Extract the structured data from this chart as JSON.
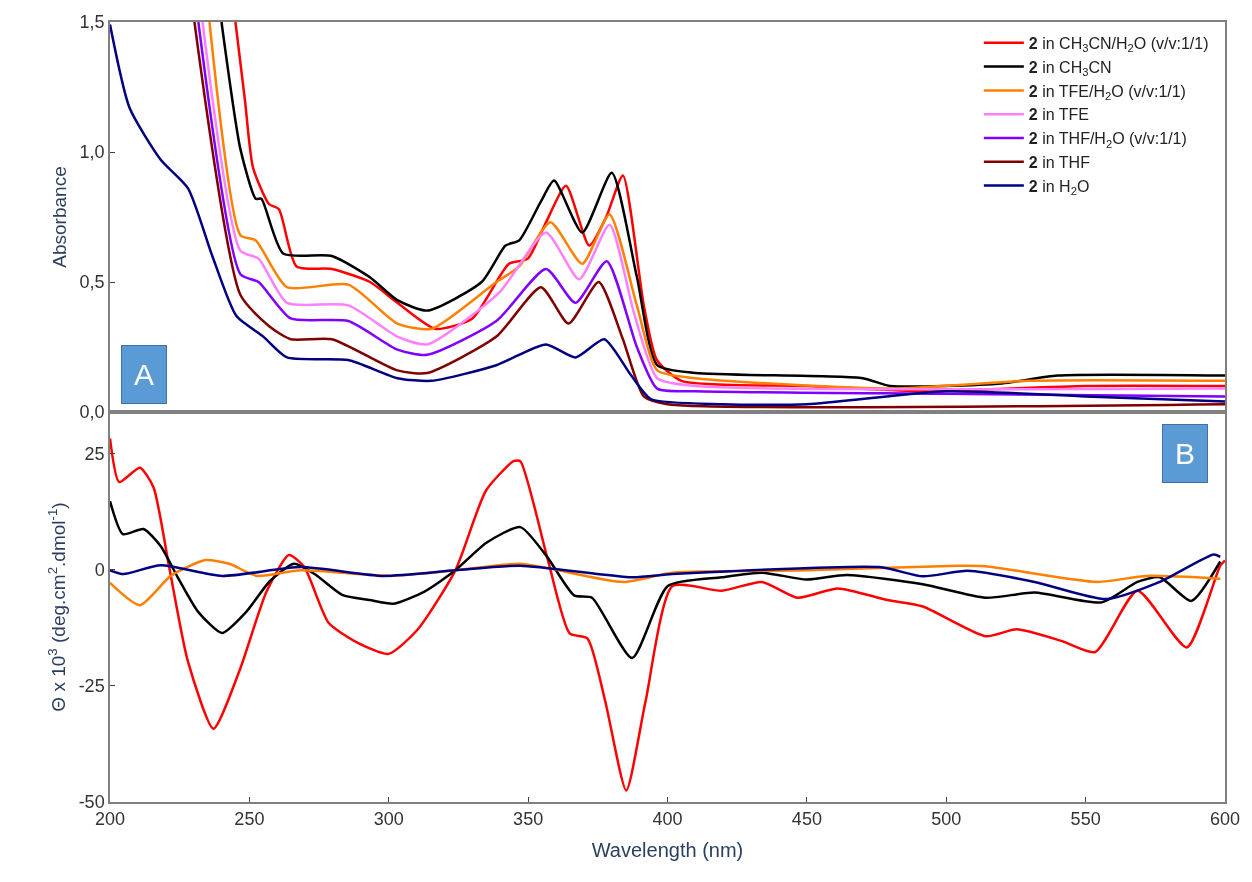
{
  "chart_data": [
    {
      "type": "line",
      "ylabel": "Absorbance",
      "xlim": [
        200,
        600
      ],
      "ylim": [
        0,
        1.5
      ],
      "yticks": [
        {
          "value": 0,
          "label": "0,0"
        },
        {
          "value": 0.5,
          "label": "0,5"
        },
        {
          "value": 1.0,
          "label": "1,0"
        },
        {
          "value": 1.5,
          "label": "1,5"
        }
      ],
      "tick_labels": "y",
      "legend": "top right",
      "annotations": [
        "A"
      ],
      "series": [
        {
          "name": "2 in CH$_{3}$CN/H$_{2}$O (v/v:1/1)",
          "color": "#ff0000",
          "x": [
            245,
            248.4,
            251.3,
            257,
            260.6,
            266.9,
            279.6,
            293.3,
            303.1,
            316.7,
            330,
            343.1,
            349.9,
            356,
            363.6,
            371.9,
            378,
            384,
            391.5,
            396.2,
            405,
            450,
            490,
            550,
            600
          ],
          "values": [
            1.5,
            1.2,
            0.94,
            0.8,
            0.78,
            0.56,
            0.55,
            0.5,
            0.42,
            0.32,
            0.36,
            0.57,
            0.59,
            0.72,
            0.87,
            0.64,
            0.75,
            0.91,
            0.41,
            0.2,
            0.12,
            0.1,
            0.08,
            0.1,
            0.1
          ]
        },
        {
          "name": "2 in CH$_{3}$CN",
          "color": "#000000",
          "x": [
            240,
            246.8,
            252.3,
            254.3,
            262.1,
            279.6,
            293,
            303.1,
            313.8,
            333.3,
            341.9,
            346.8,
            354.6,
            359.3,
            369.4,
            380,
            389,
            396.3,
            410,
            470,
            480,
            520,
            540,
            600
          ],
          "values": [
            1.5,
            1.01,
            0.82,
            0.82,
            0.61,
            0.6,
            0.52,
            0.43,
            0.39,
            0.5,
            0.64,
            0.66,
            0.81,
            0.89,
            0.69,
            0.92,
            0.52,
            0.18,
            0.15,
            0.13,
            0.1,
            0.11,
            0.14,
            0.14
          ]
        },
        {
          "name": "2 in TFE/H$_{2}$O (v/v:1/1)",
          "color": "#ff7f00",
          "x": [
            235.7,
            246.8,
            252.3,
            263.5,
            285.5,
            303.1,
            315.4,
            338.6,
            346.8,
            358,
            369.4,
            379.2,
            389,
            396.3,
            410,
            480,
            530,
            600
          ],
          "values": [
            1.5,
            0.68,
            0.66,
            0.48,
            0.49,
            0.34,
            0.32,
            0.5,
            0.56,
            0.73,
            0.57,
            0.76,
            0.41,
            0.16,
            0.13,
            0.09,
            0.12,
            0.12
          ]
        },
        {
          "name": "2 in TFE",
          "color": "#ff80ff",
          "x": [
            233.2,
            246.8,
            253.3,
            263.5,
            285.5,
            303.1,
            313.8,
            339.7,
            356.4,
            368.3,
            379.2,
            388,
            396.3,
            410,
            600
          ],
          "values": [
            1.5,
            0.62,
            0.59,
            0.42,
            0.41,
            0.29,
            0.26,
            0.46,
            0.69,
            0.51,
            0.72,
            0.38,
            0.13,
            0.1,
            0.09
          ]
        },
        {
          "name": "2 in THF/H$_{2}$O (v/v:1/1)",
          "color": "#8000ff",
          "x": [
            231.7,
            246.8,
            253.3,
            264.8,
            285.5,
            303.1,
            313.8,
            338.6,
            356.4,
            367,
            378.2,
            389,
            396.3,
            410,
            500,
            600
          ],
          "values": [
            1.5,
            0.53,
            0.5,
            0.36,
            0.35,
            0.24,
            0.22,
            0.35,
            0.55,
            0.42,
            0.58,
            0.25,
            0.09,
            0.08,
            0.07,
            0.06
          ]
        },
        {
          "name": "2 in THF",
          "color": "#800000",
          "x": [
            230.3,
            246.8,
            257.1,
            264.8,
            279.6,
            303.1,
            313.8,
            338.6,
            354.6,
            364.5,
            375.3,
            384,
            391.5,
            400,
            600
          ],
          "values": [
            1.5,
            0.45,
            0.33,
            0.28,
            0.28,
            0.16,
            0.15,
            0.29,
            0.48,
            0.34,
            0.5,
            0.28,
            0.06,
            0.03,
            0.03
          ]
        },
        {
          "name": "2 in H$_{2}$O",
          "color": "#000080",
          "x": [
            200,
            207,
            218.2,
            228,
            236.7,
            245.3,
            255,
            263.5,
            285.5,
            303.1,
            315.4,
            338.6,
            356.4,
            367,
            377.3,
            387,
            394,
            420,
            450,
            500,
            550,
            600
          ],
          "values": [
            1.49,
            1.17,
            0.97,
            0.86,
            0.6,
            0.37,
            0.29,
            0.21,
            0.2,
            0.13,
            0.12,
            0.18,
            0.26,
            0.21,
            0.28,
            0.14,
            0.05,
            0.03,
            0.03,
            0.08,
            0.06,
            0.04
          ]
        }
      ]
    },
    {
      "type": "line",
      "xlabel": "Wavelength (nm)",
      "ylabel": "Θ x 10$^{3}$ (deg.cm$^{2}$.dmol$^{-1}$)",
      "xlim": [
        200,
        600
      ],
      "xticks": [
        200,
        250,
        300,
        350,
        400,
        450,
        500,
        550,
        600
      ],
      "ylim": [
        -50,
        34
      ],
      "yticks": [
        25,
        0,
        -25,
        -50
      ],
      "annotations": [
        "B"
      ],
      "series": [
        {
          "color": "#ff0000",
          "x": [
            200,
            203.3,
            210.7,
            215.6,
            221.2,
            227.9,
            237.1,
            246.4,
            256.2,
            264.2,
            269.7,
            278.4,
            288.2,
            299.9,
            310.3,
            323.9,
            334.9,
            344.8,
            347.2,
            356.8,
            364.9,
            371.3,
            377.7,
            385.2,
            392.1,
            401.8,
            419.4,
            433.9,
            446.7,
            461.1,
            478.8,
            491.6,
            514.1,
            525.3,
            541.3,
            553.4,
            568.6,
            586.3,
            598.3,
            600
          ],
          "values": [
            28.3,
            18.9,
            22,
            17.8,
            0.7,
            -19.6,
            -34.2,
            -21.8,
            -4.6,
            3.2,
            0.6,
            -11.4,
            -15.5,
            -18.1,
            -12.9,
            -0.1,
            17.1,
            23.4,
            23.4,
            2.8,
            -13.7,
            -14.8,
            -28.4,
            -47.5,
            -28.4,
            -3.5,
            -4.5,
            -2.6,
            -6,
            -4,
            -6.5,
            -7.9,
            -14.3,
            -12.8,
            -15.3,
            -17.7,
            -4.5,
            -16.7,
            0.9,
            2
          ]
        },
        {
          "color": "#000000",
          "x": [
            200,
            204.6,
            212,
            218.2,
            224.3,
            231.7,
            240.2,
            248.8,
            257.4,
            266,
            273.4,
            283.3,
            293.1,
            301.7,
            312.8,
            323.9,
            334.9,
            347.2,
            356.8,
            366.5,
            372.9,
            387.3,
            400.1,
            419.4,
            433.9,
            449.9,
            464.3,
            491.6,
            514.1,
            531.7,
            555.8,
            568.6,
            576.6,
            587.9,
            598.3
          ],
          "values": [
            14.8,
            7.7,
            8.8,
            5.1,
            -1.6,
            -9.1,
            -13.6,
            -9.1,
            -2.4,
            1.3,
            -0.9,
            -5.4,
            -6.5,
            -7.3,
            -4.7,
            -0.1,
            5.8,
            9.2,
            2.8,
            -5.5,
            -6,
            -19,
            -3.5,
            -1.6,
            -0.6,
            -2.1,
            -1.1,
            -3.1,
            -6,
            -4.9,
            -7,
            -2.6,
            -1.6,
            -6.7,
            1.8
          ]
        },
        {
          "color": "#ff7f00",
          "x": [
            200,
            210.7,
            221.8,
            234.2,
            242.8,
            252.7,
            268.5,
            300.5,
            323.9,
            347.2,
            384,
            401.8,
            449.9,
            504.3,
            514,
            554.2,
            571.8,
            598.3
          ],
          "values": [
            -2.8,
            -7.6,
            -1.3,
            2.1,
            1.3,
            -1.3,
            -0.1,
            -1.3,
            -0.1,
            1.3,
            -2.6,
            -0.6,
            -0.1,
            0.9,
            0.8,
            -2.6,
            -1.3,
            -1.9
          ]
        },
        {
          "color": "#000080",
          "x": [
            200,
            204.9,
            218.2,
            240.2,
            268.5,
            298,
            323.9,
            347.2,
            387.3,
            401.8,
            476,
            491.6,
            507.7,
            531.7,
            557.4,
            576.6,
            595.9,
            598.3
          ],
          "values": [
            -0.1,
            -0.9,
            1,
            -1.3,
            0.6,
            -1.3,
            -0.1,
            0.9,
            -1.6,
            -0.9,
            0.6,
            -1.4,
            -0.2,
            -2.6,
            -6.3,
            -2.6,
            3.3,
            2.8
          ]
        }
      ]
    }
  ]
}
